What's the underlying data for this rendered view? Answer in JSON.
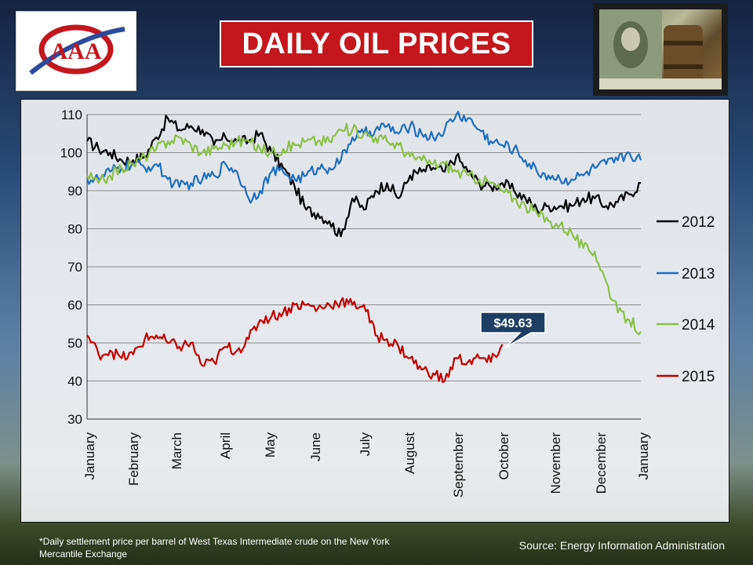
{
  "header": {
    "title": "DAILY OIL PRICES",
    "logo_text": "AAA",
    "logo_icon": "aaa-logo-icon",
    "photo_icon": "dollar-bill-oil-barrel-photo"
  },
  "footer": {
    "footnote": "*Daily settlement price per barrel of West Texas Intermediate crude on the New York Mercantile Exchange",
    "source": "Source: Energy Information  Administration"
  },
  "colors": {
    "series_2012": "#000000",
    "series_2013": "#1f6fbf",
    "series_2014": "#8cbf4a",
    "series_2015": "#c00000",
    "callout_fill": "#1f3e66",
    "title_bg": "#c4161c"
  },
  "chart_data": {
    "type": "line",
    "title": "DAILY OIL PRICES",
    "xlabel": "",
    "ylabel": "",
    "x_tick_labels": [
      "January",
      "February",
      "March",
      "April",
      "May",
      "June",
      "July",
      "August",
      "September",
      "October",
      "November",
      "December",
      "January"
    ],
    "xlim": [
      0,
      12
    ],
    "y_ticks": [
      30,
      40,
      50,
      60,
      70,
      80,
      90,
      100,
      110
    ],
    "ylim": [
      30,
      110
    ],
    "grid": true,
    "legend_position": "right",
    "annotation": {
      "text": "$49.63",
      "x": 9.0,
      "y": 49.63,
      "series": "2015"
    },
    "series": [
      {
        "name": "2012",
        "color": "#000000",
        "x": [
          0,
          0.25,
          0.5,
          0.75,
          1,
          1.25,
          1.5,
          1.75,
          2,
          2.25,
          2.5,
          2.75,
          3,
          3.25,
          3.5,
          3.75,
          4,
          4.25,
          4.5,
          4.75,
          5,
          5.25,
          5.5,
          5.75,
          6,
          6.25,
          6.5,
          6.75,
          7,
          7.25,
          7.5,
          7.75,
          8,
          8.25,
          8.5,
          8.75,
          9,
          9.25,
          9.5,
          9.75,
          10,
          10.25,
          10.5,
          10.75,
          11,
          11.25,
          11.5,
          11.75,
          12
        ],
        "values": [
          103,
          101,
          100,
          98,
          98,
          99,
          104,
          109,
          106,
          107,
          106,
          102,
          104,
          103,
          103,
          105,
          100,
          96,
          91,
          85,
          84,
          82,
          78,
          88,
          85,
          90,
          92,
          88,
          94,
          95,
          96,
          95,
          99,
          95,
          92,
          91,
          92,
          90,
          88,
          85,
          86,
          86,
          86,
          88,
          88,
          86,
          87,
          89,
          92
        ]
      },
      {
        "name": "2013",
        "color": "#1f6fbf",
        "x": [
          0,
          0.25,
          0.5,
          0.75,
          1,
          1.25,
          1.5,
          1.75,
          2,
          2.25,
          2.5,
          2.75,
          3,
          3.25,
          3.5,
          3.75,
          4,
          4.25,
          4.5,
          4.75,
          5,
          5.25,
          5.5,
          5.75,
          6,
          6.25,
          6.5,
          6.75,
          7,
          7.25,
          7.5,
          7.75,
          8,
          8.25,
          8.5,
          8.75,
          9,
          9.25,
          9.5,
          9.75,
          10,
          10.25,
          10.5,
          10.75,
          11,
          11.25,
          11.5,
          11.75,
          12
        ],
        "values": [
          93,
          93,
          95,
          96,
          97,
          96,
          97,
          93,
          91,
          92,
          93,
          94,
          97,
          95,
          88,
          90,
          95,
          95,
          93,
          94,
          96,
          96,
          98,
          104,
          105,
          106,
          107,
          105,
          107,
          105,
          104,
          106,
          110,
          109,
          106,
          103,
          102,
          101,
          98,
          95,
          94,
          93,
          93,
          94,
          96,
          97,
          98,
          100,
          98
        ]
      },
      {
        "name": "2014",
        "color": "#8cbf4a",
        "x": [
          0,
          0.25,
          0.5,
          0.75,
          1,
          1.25,
          1.5,
          1.75,
          2,
          2.25,
          2.5,
          2.75,
          3,
          3.25,
          3.5,
          3.75,
          4,
          4.25,
          4.5,
          4.75,
          5,
          5.25,
          5.5,
          5.75,
          6,
          6.25,
          6.5,
          6.75,
          7,
          7.25,
          7.5,
          7.75,
          8,
          8.25,
          8.5,
          8.75,
          9,
          9.25,
          9.5,
          9.75,
          10,
          10.25,
          10.5,
          10.75,
          11,
          11.25,
          11.5,
          11.75,
          12
        ],
        "values": [
          94,
          92,
          94,
          96,
          97,
          99,
          101,
          103,
          104,
          102,
          100,
          101,
          102,
          103,
          103,
          101,
          100,
          101,
          102,
          103,
          103,
          103,
          106,
          106,
          105,
          104,
          103,
          102,
          99,
          98,
          97,
          97,
          95,
          94,
          93,
          92,
          90,
          88,
          86,
          84,
          82,
          81,
          79,
          75,
          74,
          66,
          58,
          56,
          53
        ]
      },
      {
        "name": "2015",
        "color": "#c00000",
        "x": [
          0,
          0.25,
          0.5,
          0.75,
          1,
          1.25,
          1.5,
          1.75,
          2,
          2.25,
          2.5,
          2.75,
          3,
          3.25,
          3.5,
          3.75,
          4,
          4.25,
          4.5,
          4.75,
          5,
          5.25,
          5.5,
          5.75,
          6,
          6.25,
          6.5,
          6.75,
          7,
          7.25,
          7.5,
          7.75,
          8,
          8.25,
          8.5,
          8.75,
          9
        ],
        "values": [
          52,
          47,
          48,
          46,
          47,
          51,
          52,
          50,
          49,
          50,
          44,
          45,
          49,
          48,
          51,
          56,
          57,
          58,
          60,
          60,
          59,
          60,
          61,
          60,
          60,
          52,
          51,
          49,
          46,
          43,
          42,
          40,
          46,
          45,
          46,
          45,
          49.63
        ]
      }
    ]
  }
}
